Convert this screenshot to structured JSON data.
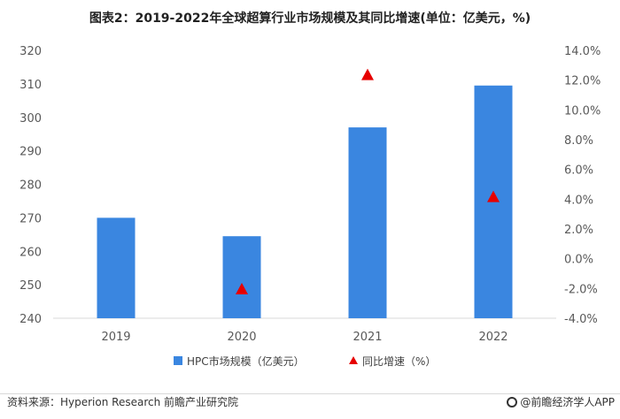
{
  "title": "图表2：2019-2022年全球超算行业市场规模及其同比增速(单位：亿美元，%)",
  "chart_data": {
    "type": "bar",
    "categories": [
      "2019",
      "2020",
      "2021",
      "2022"
    ],
    "series": [
      {
        "name": "HPC市场规模（亿美元）",
        "type": "bar",
        "axis": "left",
        "values": [
          270,
          264.5,
          297,
          309.5
        ],
        "color": "#3a86e0"
      },
      {
        "name": "同比增速（%）",
        "type": "scatter",
        "marker": "triangle",
        "axis": "right",
        "values": [
          null,
          -2.1,
          12.3,
          4.1
        ],
        "color": "#e60000"
      }
    ],
    "y_left": {
      "lim": [
        240,
        320
      ],
      "ticks": [
        "240",
        "250",
        "260",
        "270",
        "280",
        "290",
        "300",
        "310",
        "320"
      ]
    },
    "y_right": {
      "lim": [
        -4,
        14
      ],
      "ticks": [
        "-4.0%",
        "-2.0%",
        "0.0%",
        "2.0%",
        "4.0%",
        "6.0%",
        "8.0%",
        "10.0%",
        "12.0%",
        "14.0%"
      ]
    },
    "grid": false,
    "legend": "bottom"
  },
  "source": "资料来源：Hyperion Research 前瞻产业研究院",
  "brand": "@前瞻经济学人APP"
}
